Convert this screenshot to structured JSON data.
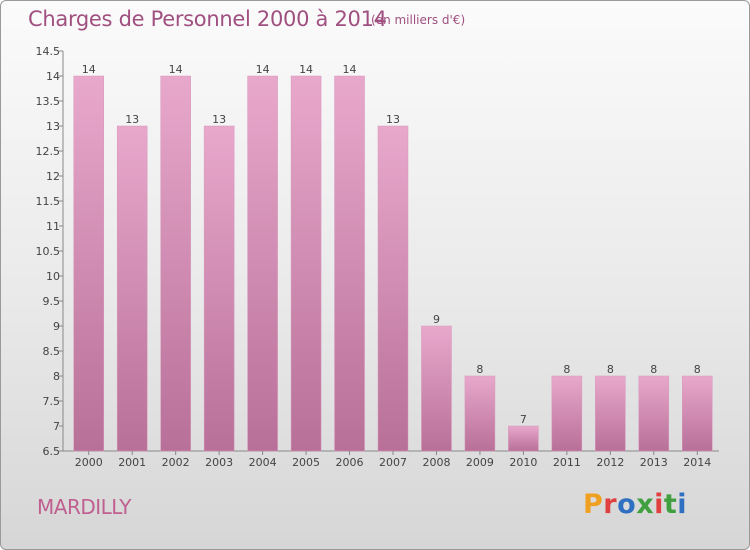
{
  "title": "Charges de Personnel 2000 à 2014",
  "subtitle": "(en milliers d'€)",
  "commune": "MARDILLY",
  "logo": {
    "letters": [
      "P",
      "r",
      "o",
      "x",
      "i",
      "t",
      "i"
    ],
    "colors": [
      "#f0a020",
      "#e04040",
      "#3070c0",
      "#40a040",
      "#e04040",
      "#40a040",
      "#3070c0"
    ]
  },
  "colors": {
    "bar_top": "#e8a8cc",
    "bar_bottom": "#b87098",
    "text": "#a05080"
  },
  "chart_data": {
    "type": "bar",
    "categories": [
      "2000",
      "2001",
      "2002",
      "2003",
      "2004",
      "2005",
      "2006",
      "2007",
      "2008",
      "2009",
      "2010",
      "2011",
      "2012",
      "2013",
      "2014"
    ],
    "values": [
      14,
      13,
      14,
      13,
      14,
      14,
      14,
      13,
      9,
      8,
      7,
      8,
      8,
      8,
      8
    ],
    "data_labels": [
      "14",
      "13",
      "14",
      "13",
      "14",
      "14",
      "14",
      "13",
      "9",
      "8",
      "7",
      "8",
      "8",
      "8",
      "8"
    ],
    "ylim": [
      6.5,
      14.5
    ],
    "yticks": [
      6.5,
      7,
      7.5,
      8,
      8.5,
      9,
      9.5,
      10,
      10.5,
      11,
      11.5,
      12,
      12.5,
      13,
      13.5,
      14,
      14.5
    ],
    "ytick_labels": [
      "6.5",
      "7",
      "7.5",
      "8",
      "8.5",
      "9",
      "9.5",
      "10",
      "10.5",
      "11",
      "11.5",
      "12",
      "12.5",
      "13",
      "13.5",
      "14",
      "14.5"
    ],
    "xlabel": "",
    "ylabel": ""
  }
}
